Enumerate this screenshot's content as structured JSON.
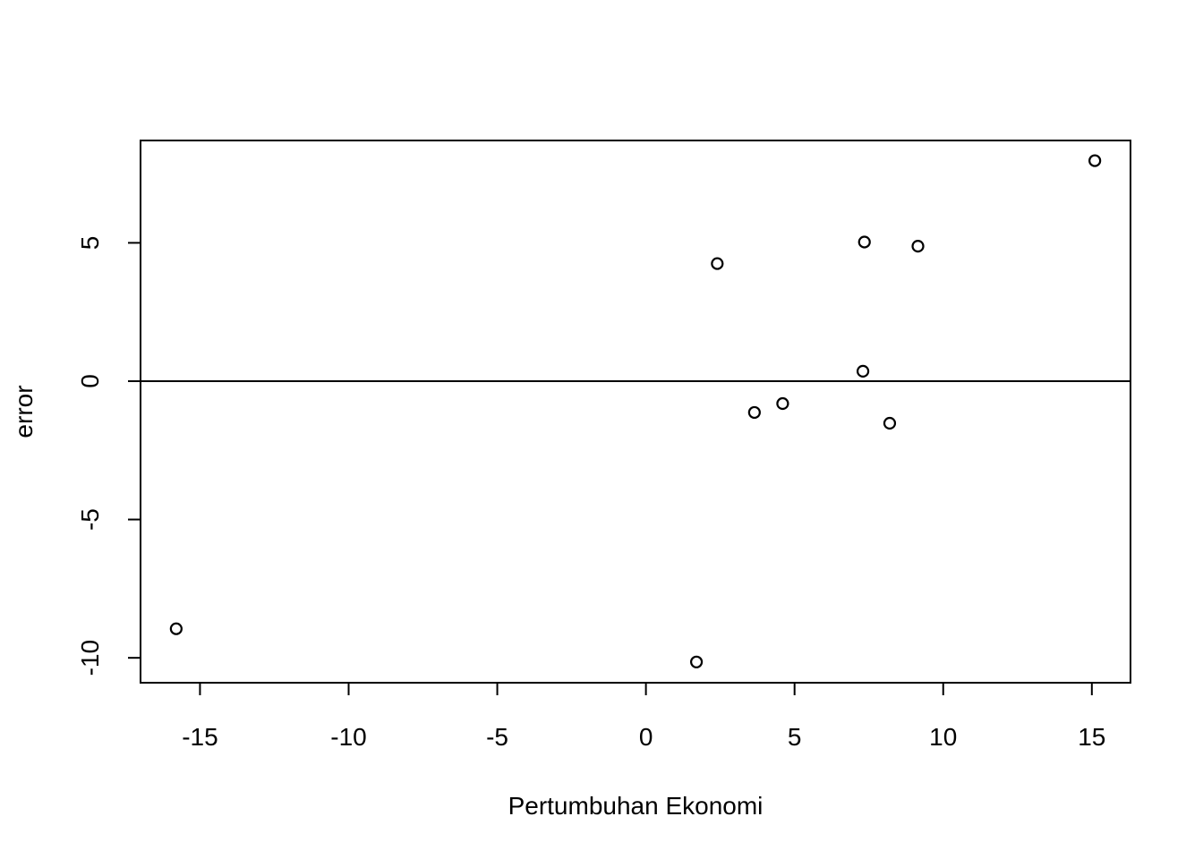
{
  "chart_data": {
    "type": "scatter",
    "title": "",
    "xlabel": "Pertumbuhan Ekonomi",
    "ylabel": "error",
    "xlim": [
      -17,
      16.3
    ],
    "ylim": [
      -10.9,
      8.7
    ],
    "x_ticks": [
      -15,
      -10,
      -5,
      0,
      5,
      10,
      15
    ],
    "y_ticks": [
      -10,
      -5,
      0,
      5
    ],
    "x_tick_labels": [
      "-15",
      "-10",
      "-5",
      "0",
      "5",
      "10",
      "15"
    ],
    "y_tick_labels": [
      "-10",
      "-5",
      "0",
      "5"
    ],
    "reference_line_y": 0,
    "grid": false,
    "marker": "open-circle",
    "points": [
      {
        "x": -15.8,
        "y": -8.95
      },
      {
        "x": 1.7,
        "y": -10.15
      },
      {
        "x": 2.4,
        "y": 4.25
      },
      {
        "x": 3.65,
        "y": -1.13
      },
      {
        "x": 4.6,
        "y": -0.81
      },
      {
        "x": 7.3,
        "y": 0.36
      },
      {
        "x": 7.35,
        "y": 5.03
      },
      {
        "x": 8.2,
        "y": -1.52
      },
      {
        "x": 9.15,
        "y": 4.88
      },
      {
        "x": 15.1,
        "y": 7.97
      }
    ]
  },
  "colors": {
    "background": "#ffffff",
    "foreground": "#000000"
  }
}
